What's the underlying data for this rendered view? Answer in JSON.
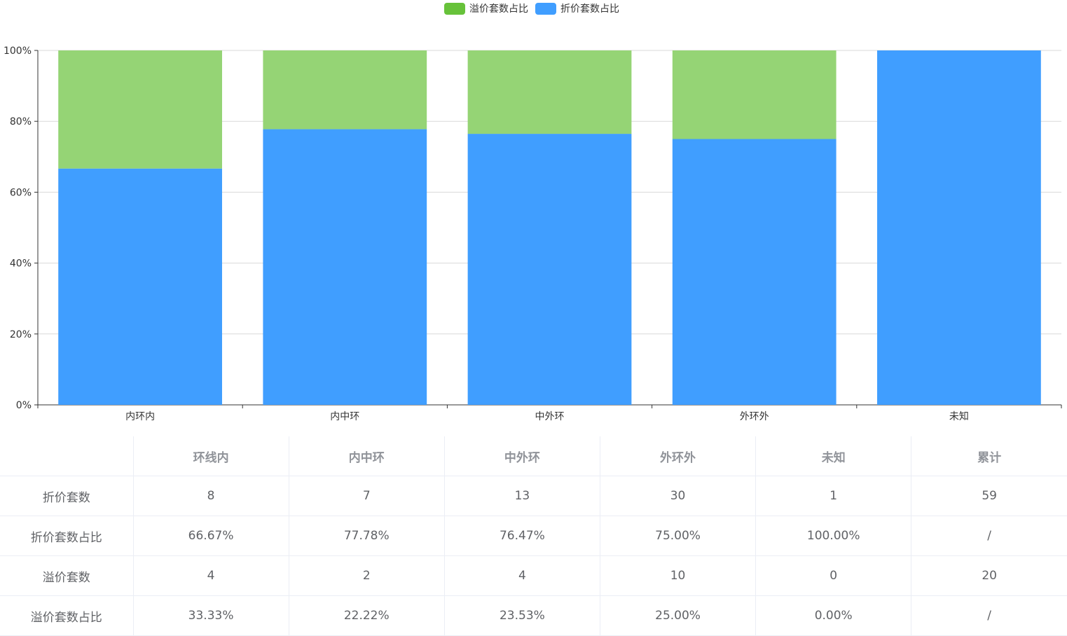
{
  "legend": [
    {
      "label": "溢价套数占比",
      "color": "#67c23a"
    },
    {
      "label": "折价套数占比",
      "color": "#409eff"
    }
  ],
  "chart_data": {
    "type": "bar",
    "stacked": true,
    "categories": [
      "内环内",
      "内中环",
      "中外环",
      "外环外",
      "未知"
    ],
    "series": [
      {
        "name": "折价套数占比",
        "color": "#409eff",
        "values": [
          66.67,
          77.78,
          76.47,
          75.0,
          100.0
        ]
      },
      {
        "name": "溢价套数占比",
        "color": "#95d475",
        "values": [
          33.33,
          22.22,
          23.53,
          25.0,
          0.0
        ]
      }
    ],
    "ylim": [
      0,
      100
    ],
    "yticks": [
      "0%",
      "20%",
      "40%",
      "60%",
      "80%",
      "100%"
    ],
    "grid": true,
    "legend_position": "top-center"
  },
  "table": {
    "headers": [
      "",
      "环线内",
      "内中环",
      "中外环",
      "外环外",
      "未知",
      "累计"
    ],
    "rows": [
      [
        "折价套数",
        "8",
        "7",
        "13",
        "30",
        "1",
        "59"
      ],
      [
        "折价套数占比",
        "66.67%",
        "77.78%",
        "76.47%",
        "75.00%",
        "100.00%",
        "/"
      ],
      [
        "溢价套数",
        "4",
        "2",
        "4",
        "10",
        "0",
        "20"
      ],
      [
        "溢价套数占比",
        "33.33%",
        "22.22%",
        "23.53%",
        "25.00%",
        "0.00%",
        "/"
      ]
    ]
  }
}
